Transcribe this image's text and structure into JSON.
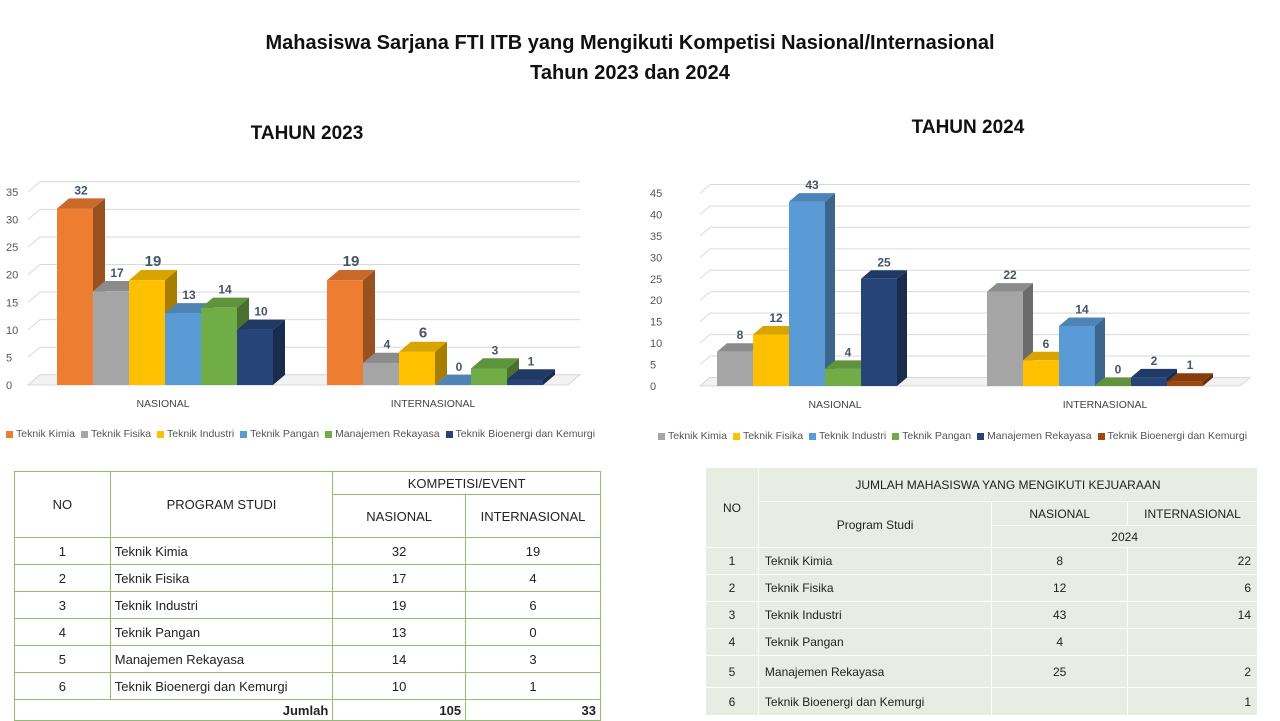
{
  "page": {
    "title_line1": "Mahasiswa Sarjana FTI ITB yang Mengikuti Kompetisi Nasional/Internasional",
    "title_line2": "Tahun  2023 dan 2024"
  },
  "chart_data": [
    {
      "type": "bar",
      "title": "TAHUN 2023",
      "categories": [
        "NASIONAL",
        "INTERNASIONAL"
      ],
      "ylim": [
        0,
        35
      ],
      "yticks": [
        0,
        5,
        10,
        15,
        20,
        25,
        30,
        35
      ],
      "grid": true,
      "legend_position": "bottom",
      "series": [
        {
          "name": "Teknik Kimia",
          "color": "#ed7d31",
          "values": [
            32,
            19
          ]
        },
        {
          "name": "Teknik Fisika",
          "color": "#a5a5a5",
          "values": [
            17,
            4
          ]
        },
        {
          "name": "Teknik Industri",
          "color": "#ffc000",
          "values": [
            19,
            6
          ]
        },
        {
          "name": "Teknik Pangan",
          "color": "#5b9bd5",
          "values": [
            13,
            0
          ]
        },
        {
          "name": "Manajemen Rekayasa",
          "color": "#70ad47",
          "values": [
            14,
            3
          ]
        },
        {
          "name": "Teknik Bioenergi dan Kemurgi",
          "color": "#264478",
          "values": [
            10,
            1
          ]
        }
      ]
    },
    {
      "type": "bar",
      "title": "TAHUN 2024",
      "categories": [
        "NASIONAL",
        "INTERNASIONAL"
      ],
      "ylim": [
        0,
        45
      ],
      "yticks": [
        0,
        5,
        10,
        15,
        20,
        25,
        30,
        35,
        40,
        45
      ],
      "grid": true,
      "legend_position": "bottom",
      "series": [
        {
          "name": "Teknik Kimia",
          "color": "#a5a5a5",
          "values": [
            8,
            22
          ]
        },
        {
          "name": "Teknik Fisika",
          "color": "#ffc000",
          "values": [
            12,
            6
          ]
        },
        {
          "name": "Teknik Industri",
          "color": "#5b9bd5",
          "values": [
            43,
            14
          ]
        },
        {
          "name": "Teknik Pangan",
          "color": "#70ad47",
          "values": [
            4,
            0
          ]
        },
        {
          "name": "Manajemen Rekayasa",
          "color": "#264478",
          "values": [
            25,
            2
          ]
        },
        {
          "name": "Teknik Bioenergi dan Kemurgi",
          "color": "#9e480e",
          "values": [
            null,
            1
          ]
        }
      ]
    }
  ],
  "table2023": {
    "col_no": "NO",
    "col_prodi": "PROGRAM STUDI",
    "col_group": "KOMPETISI/EVENT",
    "col_nas": "NASIONAL",
    "col_int": "INTERNASIONAL",
    "rows": [
      {
        "no": "1",
        "prodi": "Teknik Kimia",
        "nas": "32",
        "int": "19"
      },
      {
        "no": "2",
        "prodi": "Teknik Fisika",
        "nas": "17",
        "int": "4"
      },
      {
        "no": "3",
        "prodi": "Teknik Industri",
        "nas": "19",
        "int": "6"
      },
      {
        "no": "4",
        "prodi": "Teknik Pangan",
        "nas": "13",
        "int": "0"
      },
      {
        "no": "5",
        "prodi": "Manajemen Rekayasa",
        "nas": "14",
        "int": "3"
      },
      {
        "no": "6",
        "prodi": "Teknik Bioenergi dan Kemurgi",
        "nas": "10",
        "int": "1"
      }
    ],
    "total_label": "Jumlah",
    "total_nas": "105",
    "total_int": "33"
  },
  "table2024": {
    "col_no": "NO",
    "col_group": "JUMLAH MAHASISWA YANG MENGIKUTI KEJUARAAN",
    "col_prodi": "Program Studi",
    "col_nas": "NASIONAL",
    "col_int": "INTERNASIONAL",
    "year": "2024",
    "rows": [
      {
        "no": "1",
        "prodi": "Teknik Kimia",
        "nas": "8",
        "int": "22"
      },
      {
        "no": "2",
        "prodi": "Teknik Fisika",
        "nas": "12",
        "int": "6"
      },
      {
        "no": "3",
        "prodi": "Teknik Industri",
        "nas": "43",
        "int": "14"
      },
      {
        "no": "4",
        "prodi": "Teknik Pangan",
        "nas": "4",
        "int": ""
      },
      {
        "no": "5",
        "prodi": "Manajemen Rekayasa",
        "nas": "25",
        "int": "2"
      },
      {
        "no": "6",
        "prodi": "Teknik Bioenergi dan Kemurgi",
        "nas": "",
        "int": "1"
      }
    ]
  }
}
